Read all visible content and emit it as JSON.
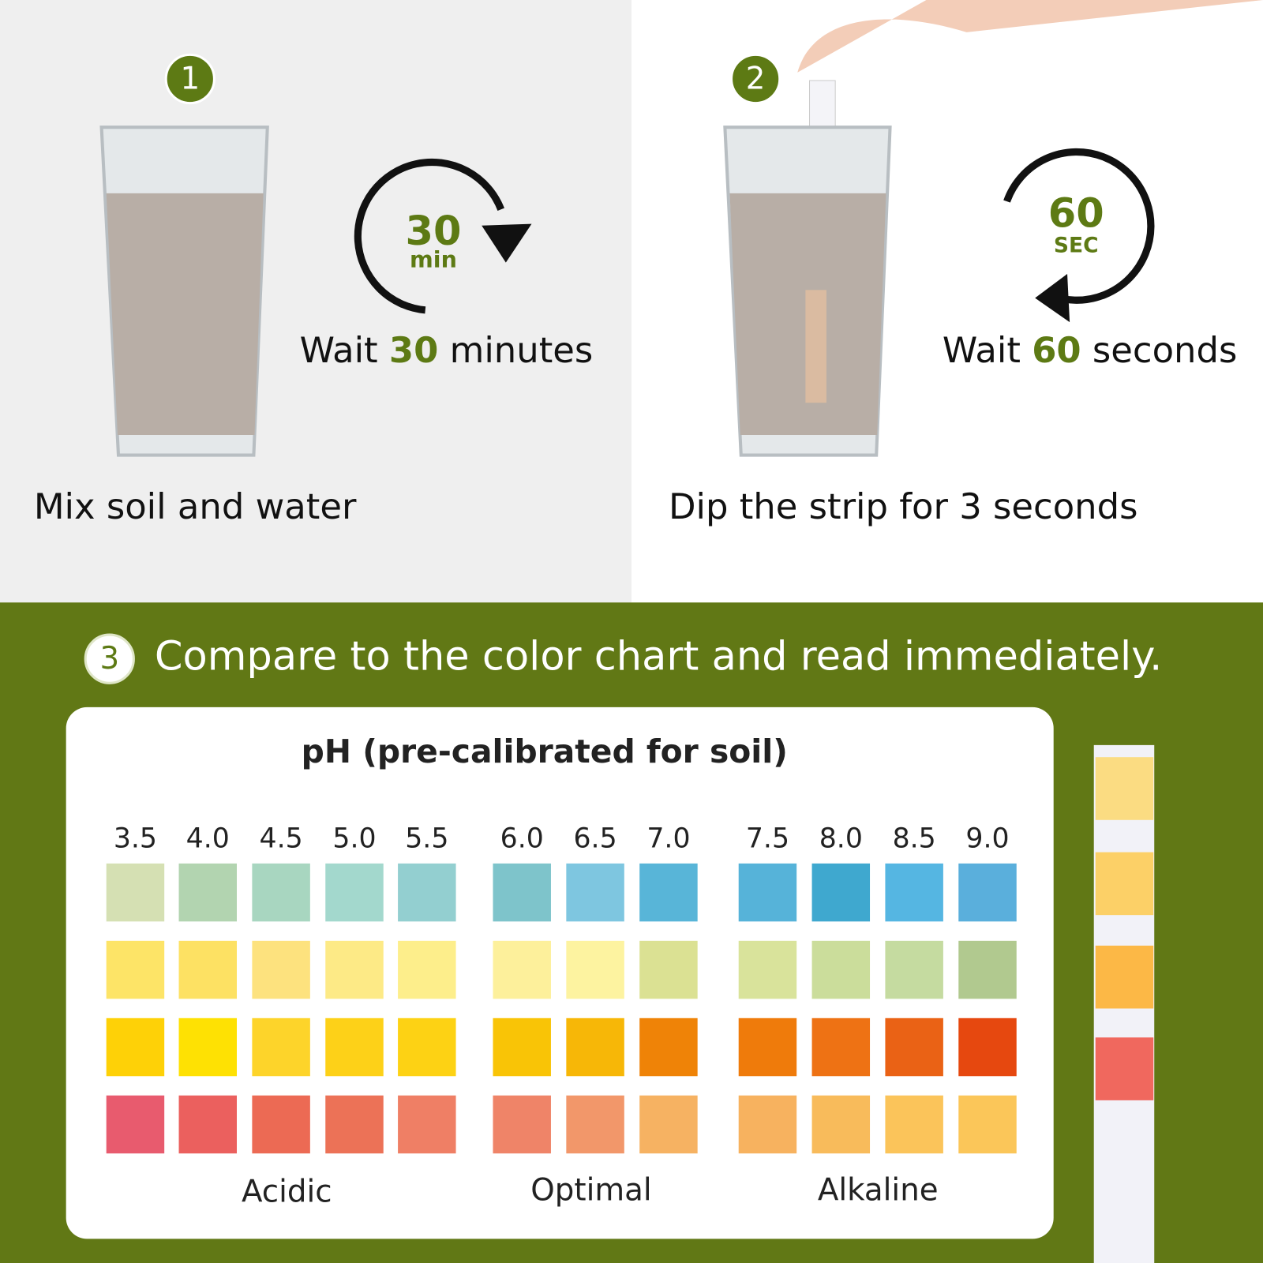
{
  "steps": [
    {
      "number": "1",
      "caption": "Mix soil and water",
      "timer": {
        "value": "30",
        "unit": "min"
      },
      "wait": [
        "Wait ",
        "30",
        " minutes"
      ]
    },
    {
      "number": "2",
      "caption": "Dip the strip for 3 seconds",
      "timer": {
        "value": "60",
        "unit": "SEC"
      },
      "wait": [
        "Wait ",
        "60",
        " seconds"
      ]
    },
    {
      "number": "3",
      "caption": "Compare to the color chart and read immediately."
    }
  ],
  "color_chart": {
    "title": "pH (pre-calibrated for soil)",
    "ph_levels": [
      "3.5",
      "4.0",
      "4.5",
      "5.0",
      "5.5",
      "6.0",
      "6.5",
      "7.0",
      "7.5",
      "8.0",
      "8.5",
      "9.0"
    ],
    "groups": [
      "Acidic",
      "Optimal",
      "Alkaline"
    ],
    "swatch_colors": [
      [
        "#d5e0b3",
        "#b2d4b0",
        "#a8d6c0",
        "#a3d8cd",
        "#93cfd0",
        "#7ec4cb",
        "#7ec6e0",
        "#58b5d8",
        "#56b3d9",
        "#3fa8cf",
        "#55b6e2",
        "#5aafdc"
      ],
      [
        "#fde467",
        "#fde163",
        "#fde27e",
        "#fdea86",
        "#fdee8b",
        "#fdf09b",
        "#fdf3a0",
        "#dbe193",
        "#d9e39b",
        "#cbdd9b",
        "#c5dba0",
        "#b1c98f"
      ],
      [
        "#fed107",
        "#fee103",
        "#fdd42a",
        "#fdd118",
        "#fdd214",
        "#f9c406",
        "#f7b707",
        "#ef8307",
        "#ef7b0b",
        "#ee7214",
        "#ea6215",
        "#e6480f"
      ],
      [
        "#e85b6e",
        "#eb605e",
        "#ec6a54",
        "#ec7257",
        "#ef7f65",
        "#ef8468",
        "#f2976a",
        "#f6b262",
        "#f7b25f",
        "#f8bb5b",
        "#fbc45a",
        "#fbc659"
      ]
    ],
    "strip_colors": [
      "#fbdc82",
      "#fcd067",
      "#fcb846",
      "#f0685e"
    ]
  }
}
